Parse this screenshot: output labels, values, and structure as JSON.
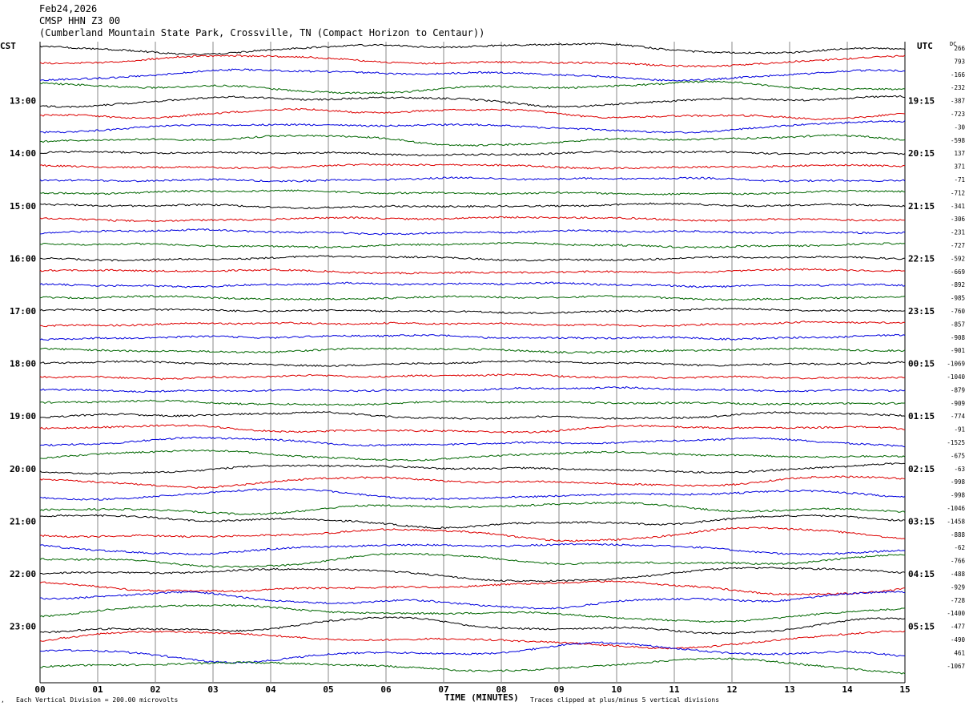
{
  "header": {
    "date": "Feb24,2026",
    "station": "CMSP HHN Z3 00",
    "location": "(Cumberland Mountain State Park, Crossville, TN (Compact Horizon to Centaur))"
  },
  "chart_data": {
    "type": "line",
    "title": "Feb24,2026",
    "left_axis_label": "CST",
    "right_axis_label": "UTC",
    "dc_label": "DC",
    "xlabel": "TIME (MINUTES)",
    "xlim": [
      0,
      15
    ],
    "x_ticks": [
      "00",
      "01",
      "02",
      "03",
      "04",
      "05",
      "06",
      "07",
      "08",
      "09",
      "10",
      "11",
      "12",
      "13",
      "14",
      "15"
    ],
    "trace_colors": [
      "#000000",
      "#dd0000",
      "#0000dd",
      "#006600"
    ],
    "cst_labels": [
      {
        "row": 4,
        "text": "13:00"
      },
      {
        "row": 8,
        "text": "14:00"
      },
      {
        "row": 12,
        "text": "15:00"
      },
      {
        "row": 16,
        "text": "16:00"
      },
      {
        "row": 20,
        "text": "17:00"
      },
      {
        "row": 24,
        "text": "18:00"
      },
      {
        "row": 28,
        "text": "19:00"
      },
      {
        "row": 32,
        "text": "20:00"
      },
      {
        "row": 36,
        "text": "21:00"
      },
      {
        "row": 40,
        "text": "22:00"
      },
      {
        "row": 44,
        "text": "23:00"
      }
    ],
    "utc_labels": [
      {
        "row": 4,
        "text": "19:15"
      },
      {
        "row": 8,
        "text": "20:15"
      },
      {
        "row": 12,
        "text": "21:15"
      },
      {
        "row": 16,
        "text": "22:15"
      },
      {
        "row": 20,
        "text": "23:15"
      },
      {
        "row": 24,
        "text": "00:15"
      },
      {
        "row": 28,
        "text": "01:15"
      },
      {
        "row": 32,
        "text": "02:15"
      },
      {
        "row": 36,
        "text": "03:15"
      },
      {
        "row": 40,
        "text": "04:15"
      },
      {
        "row": 44,
        "text": "05:15"
      }
    ],
    "dc_offsets": [
      "266",
      "793",
      "-166",
      "-232",
      "-387",
      "-723",
      "-30",
      "-598",
      "137",
      "371",
      "-71",
      "-712",
      "-341",
      "-306",
      "-231",
      "-727",
      "-592",
      "-669",
      "-892",
      "-985",
      "-760",
      "-857",
      "-908",
      "-901",
      "-1069",
      "-1040",
      "-879",
      "-909",
      "-774",
      "-91",
      "-1525",
      "-675",
      "-63",
      "-998",
      "-998",
      "-1046",
      "-1458",
      "-888",
      "-62",
      "-766",
      "-488",
      "-929",
      "-728",
      "-1400",
      "-477",
      "-490",
      "461",
      "-1067"
    ],
    "footer_left": "Each Vertical Division =  200.00 microvolts",
    "footer_right": "Traces clipped at plus/minus 5 vertical divisions"
  }
}
